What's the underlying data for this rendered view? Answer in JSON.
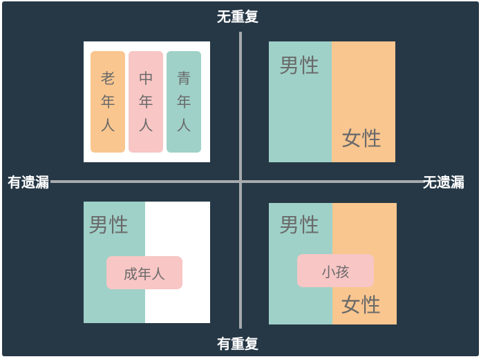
{
  "axes": {
    "top": "无重复",
    "bottom": "有重复",
    "left": "有遗漏",
    "right": "无遗漏"
  },
  "quadrants": {
    "top_left": {
      "pills": [
        {
          "chars": [
            "老",
            "年",
            "人"
          ],
          "color": "#f9c68f"
        },
        {
          "chars": [
            "中",
            "年",
            "人"
          ],
          "color": "#f7c6c5"
        },
        {
          "chars": [
            "青",
            "年",
            "人"
          ],
          "color": "#9fd1c8"
        }
      ]
    },
    "top_right": {
      "label_male": "男性",
      "label_female": "女性"
    },
    "bottom_left": {
      "label_male": "男性",
      "tag": "成年人"
    },
    "bottom_right": {
      "label_male": "男性",
      "label_female": "女性",
      "tag": "小孩"
    }
  },
  "colors": {
    "background": "#263846",
    "teal": "#9fd1c8",
    "orange": "#f9c68f",
    "pink": "#f7c6c5",
    "white": "#ffffff",
    "axis": "#a7abae"
  }
}
